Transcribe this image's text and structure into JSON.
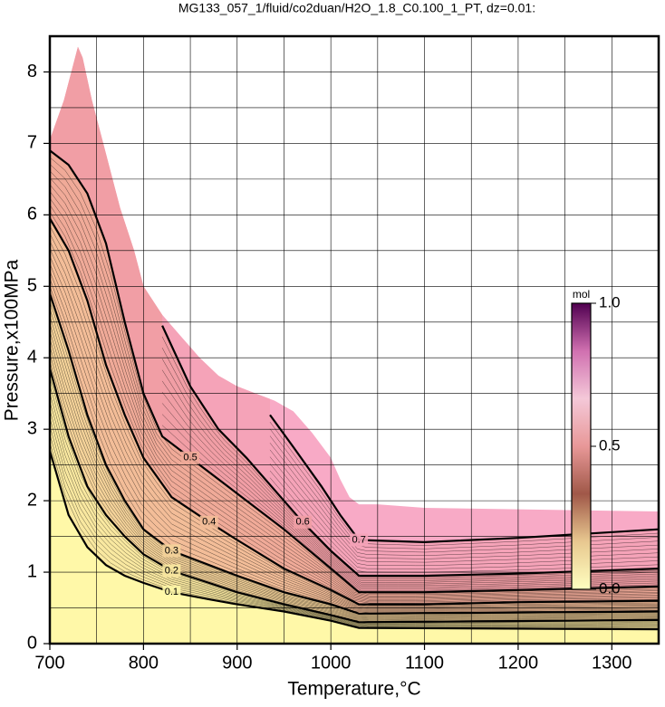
{
  "chart_data": {
    "type": "contour",
    "title": "MG133_057_1/fluid/co2duan/H2O_1.8_C0.100_1_PT, dz=0.01:",
    "xlabel": "Temperature,°C",
    "ylabel": "Pressure,x100MPa",
    "xlim": [
      700,
      1350
    ],
    "ylim": [
      0,
      8.5
    ],
    "xticks": [
      700,
      800,
      900,
      1000,
      1100,
      1200,
      1300
    ],
    "yticks": [
      0,
      1,
      2,
      3,
      4,
      5,
      6,
      7,
      8
    ],
    "xgrid": [
      750,
      850,
      950,
      1050,
      1150,
      1250
    ],
    "ygrid": [
      0.5,
      1.5,
      2.5,
      3.5,
      4.5,
      5.5,
      6.5,
      7.5
    ],
    "grid": true,
    "extent": {
      "color": "#f8aac6",
      "x": [
        700,
        700,
        715,
        725,
        730,
        735,
        745,
        755,
        765,
        775,
        790,
        800,
        820,
        840,
        860,
        880,
        900,
        920,
        940,
        960,
        980,
        1000,
        1010,
        1020,
        1030,
        1050,
        1100,
        1200,
        1300,
        1350,
        1350
      ],
      "y": [
        0,
        7.05,
        7.6,
        8.1,
        8.35,
        8.2,
        7.6,
        7.1,
        6.6,
        6.1,
        5.5,
        5.0,
        4.6,
        4.3,
        4.0,
        3.75,
        3.6,
        3.5,
        3.4,
        3.25,
        2.95,
        2.6,
        2.3,
        2.05,
        1.95,
        1.95,
        1.9,
        1.88,
        1.86,
        1.85,
        0
      ]
    },
    "contours": [
      {
        "level": 0.7,
        "color": "#f5a3b8",
        "x": [
          935,
          960,
          990,
          1010,
          1030,
          1100,
          1200,
          1350
        ],
        "y": [
          3.2,
          2.75,
          2.2,
          1.8,
          1.45,
          1.42,
          1.48,
          1.6
        ]
      },
      {
        "level": 0.6,
        "color": "#f19ea5",
        "x": [
          820,
          850,
          880,
          910,
          940,
          970,
          1000,
          1030,
          1100,
          1200,
          1350
        ],
        "y": [
          4.45,
          3.6,
          3.0,
          2.6,
          2.15,
          1.7,
          1.3,
          0.95,
          0.95,
          0.98,
          1.05
        ]
      },
      {
        "level": 0.5,
        "color": "#f0aa98",
        "x": [
          700,
          720,
          740,
          760,
          780,
          800,
          820,
          850,
          900,
          950,
          1000,
          1030,
          1100,
          1200,
          1350
        ],
        "y": [
          6.9,
          6.7,
          6.3,
          5.6,
          4.5,
          3.5,
          2.9,
          2.6,
          2.1,
          1.6,
          1.05,
          0.72,
          0.72,
          0.75,
          0.8
        ]
      },
      {
        "level": 0.4,
        "color": "#f3bd98",
        "x": [
          700,
          720,
          740,
          760,
          780,
          800,
          830,
          870,
          900,
          950,
          1000,
          1030,
          1100,
          1200,
          1350
        ],
        "y": [
          5.95,
          5.5,
          4.8,
          3.9,
          3.2,
          2.6,
          2.05,
          1.7,
          1.45,
          1.05,
          0.75,
          0.55,
          0.55,
          0.58,
          0.6
        ]
      },
      {
        "level": 0.3,
        "color": "#f5d39a",
        "x": [
          700,
          720,
          740,
          760,
          780,
          800,
          830,
          870,
          900,
          950,
          1000,
          1030,
          1350
        ],
        "y": [
          4.9,
          4.1,
          3.2,
          2.5,
          2.0,
          1.6,
          1.3,
          1.1,
          0.95,
          0.72,
          0.55,
          0.42,
          0.45
        ]
      },
      {
        "level": 0.2,
        "color": "#f9e8a0",
        "x": [
          700,
          720,
          740,
          760,
          780,
          800,
          830,
          870,
          900,
          950,
          1000,
          1030,
          1350
        ],
        "y": [
          3.85,
          2.9,
          2.2,
          1.8,
          1.5,
          1.25,
          1.02,
          0.85,
          0.72,
          0.55,
          0.4,
          0.3,
          0.33
        ]
      },
      {
        "level": 0.1,
        "color": "#fff8a8",
        "x": [
          700,
          720,
          740,
          760,
          780,
          800,
          830,
          870,
          900,
          950,
          1000,
          1030,
          1350
        ],
        "y": [
          2.7,
          1.8,
          1.35,
          1.1,
          0.95,
          0.85,
          0.72,
          0.62,
          0.55,
          0.45,
          0.32,
          0.22,
          0.2
        ]
      }
    ],
    "colorbar": {
      "label": "mol",
      "lim": [
        0,
        1
      ],
      "ticks": [
        {
          "value": 0,
          "label": "0.0"
        },
        {
          "value": 0.5,
          "label": "0.5"
        },
        {
          "value": 1,
          "label": "1.0"
        }
      ],
      "colors": [
        "#ffffc0",
        "#e8c890",
        "#a05848",
        "#e89898",
        "#f4c8d8",
        "#d070b0",
        "#500050"
      ]
    }
  }
}
